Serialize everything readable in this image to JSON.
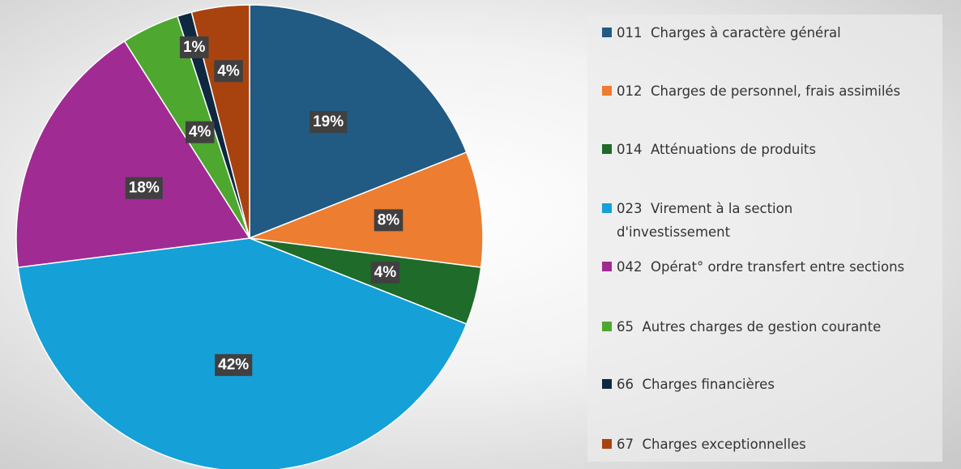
{
  "chart_data": {
    "type": "pie",
    "categories": [
      "011  Charges à caractère général",
      "012  Charges de personnel, frais assimilés",
      "014  Atténuations de produits",
      "023  Virement à la section d'investissement",
      "042  Opérat° ordre transfert entre sections",
      "65  Autres charges de gestion courante",
      "66  Charges financières",
      "67  Charges exceptionnelles"
    ],
    "values": [
      19,
      8,
      4,
      42,
      18,
      4,
      1,
      4
    ],
    "value_labels": [
      "19%",
      "8%",
      "4%",
      "42%",
      "18%",
      "4%",
      "1%",
      "4%"
    ],
    "colors": [
      "#215a82",
      "#ed7d31",
      "#1e6b2a",
      "#15a0d8",
      "#a02b93",
      "#4ea72e",
      "#0e2841",
      "#a8430f"
    ],
    "legend": "right"
  }
}
